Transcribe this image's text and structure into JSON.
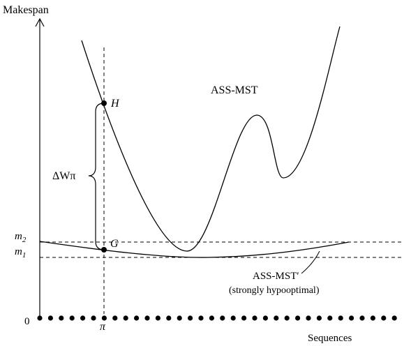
{
  "y_axis_label": "Makespan",
  "x_axis_label": "Sequences",
  "zero_label": "0",
  "pi_label": "π",
  "m2_label": "m",
  "m2_subscript": "2",
  "m1_label": "m",
  "m1_subscript": "1",
  "point_h_label": "H",
  "point_g_label": "G",
  "delta_label": "ΔWπ",
  "curve1_label": "ASS-MST",
  "curve2_label": "ASS-MST′",
  "curve2_note": "(strongly hypooptimal)"
}
